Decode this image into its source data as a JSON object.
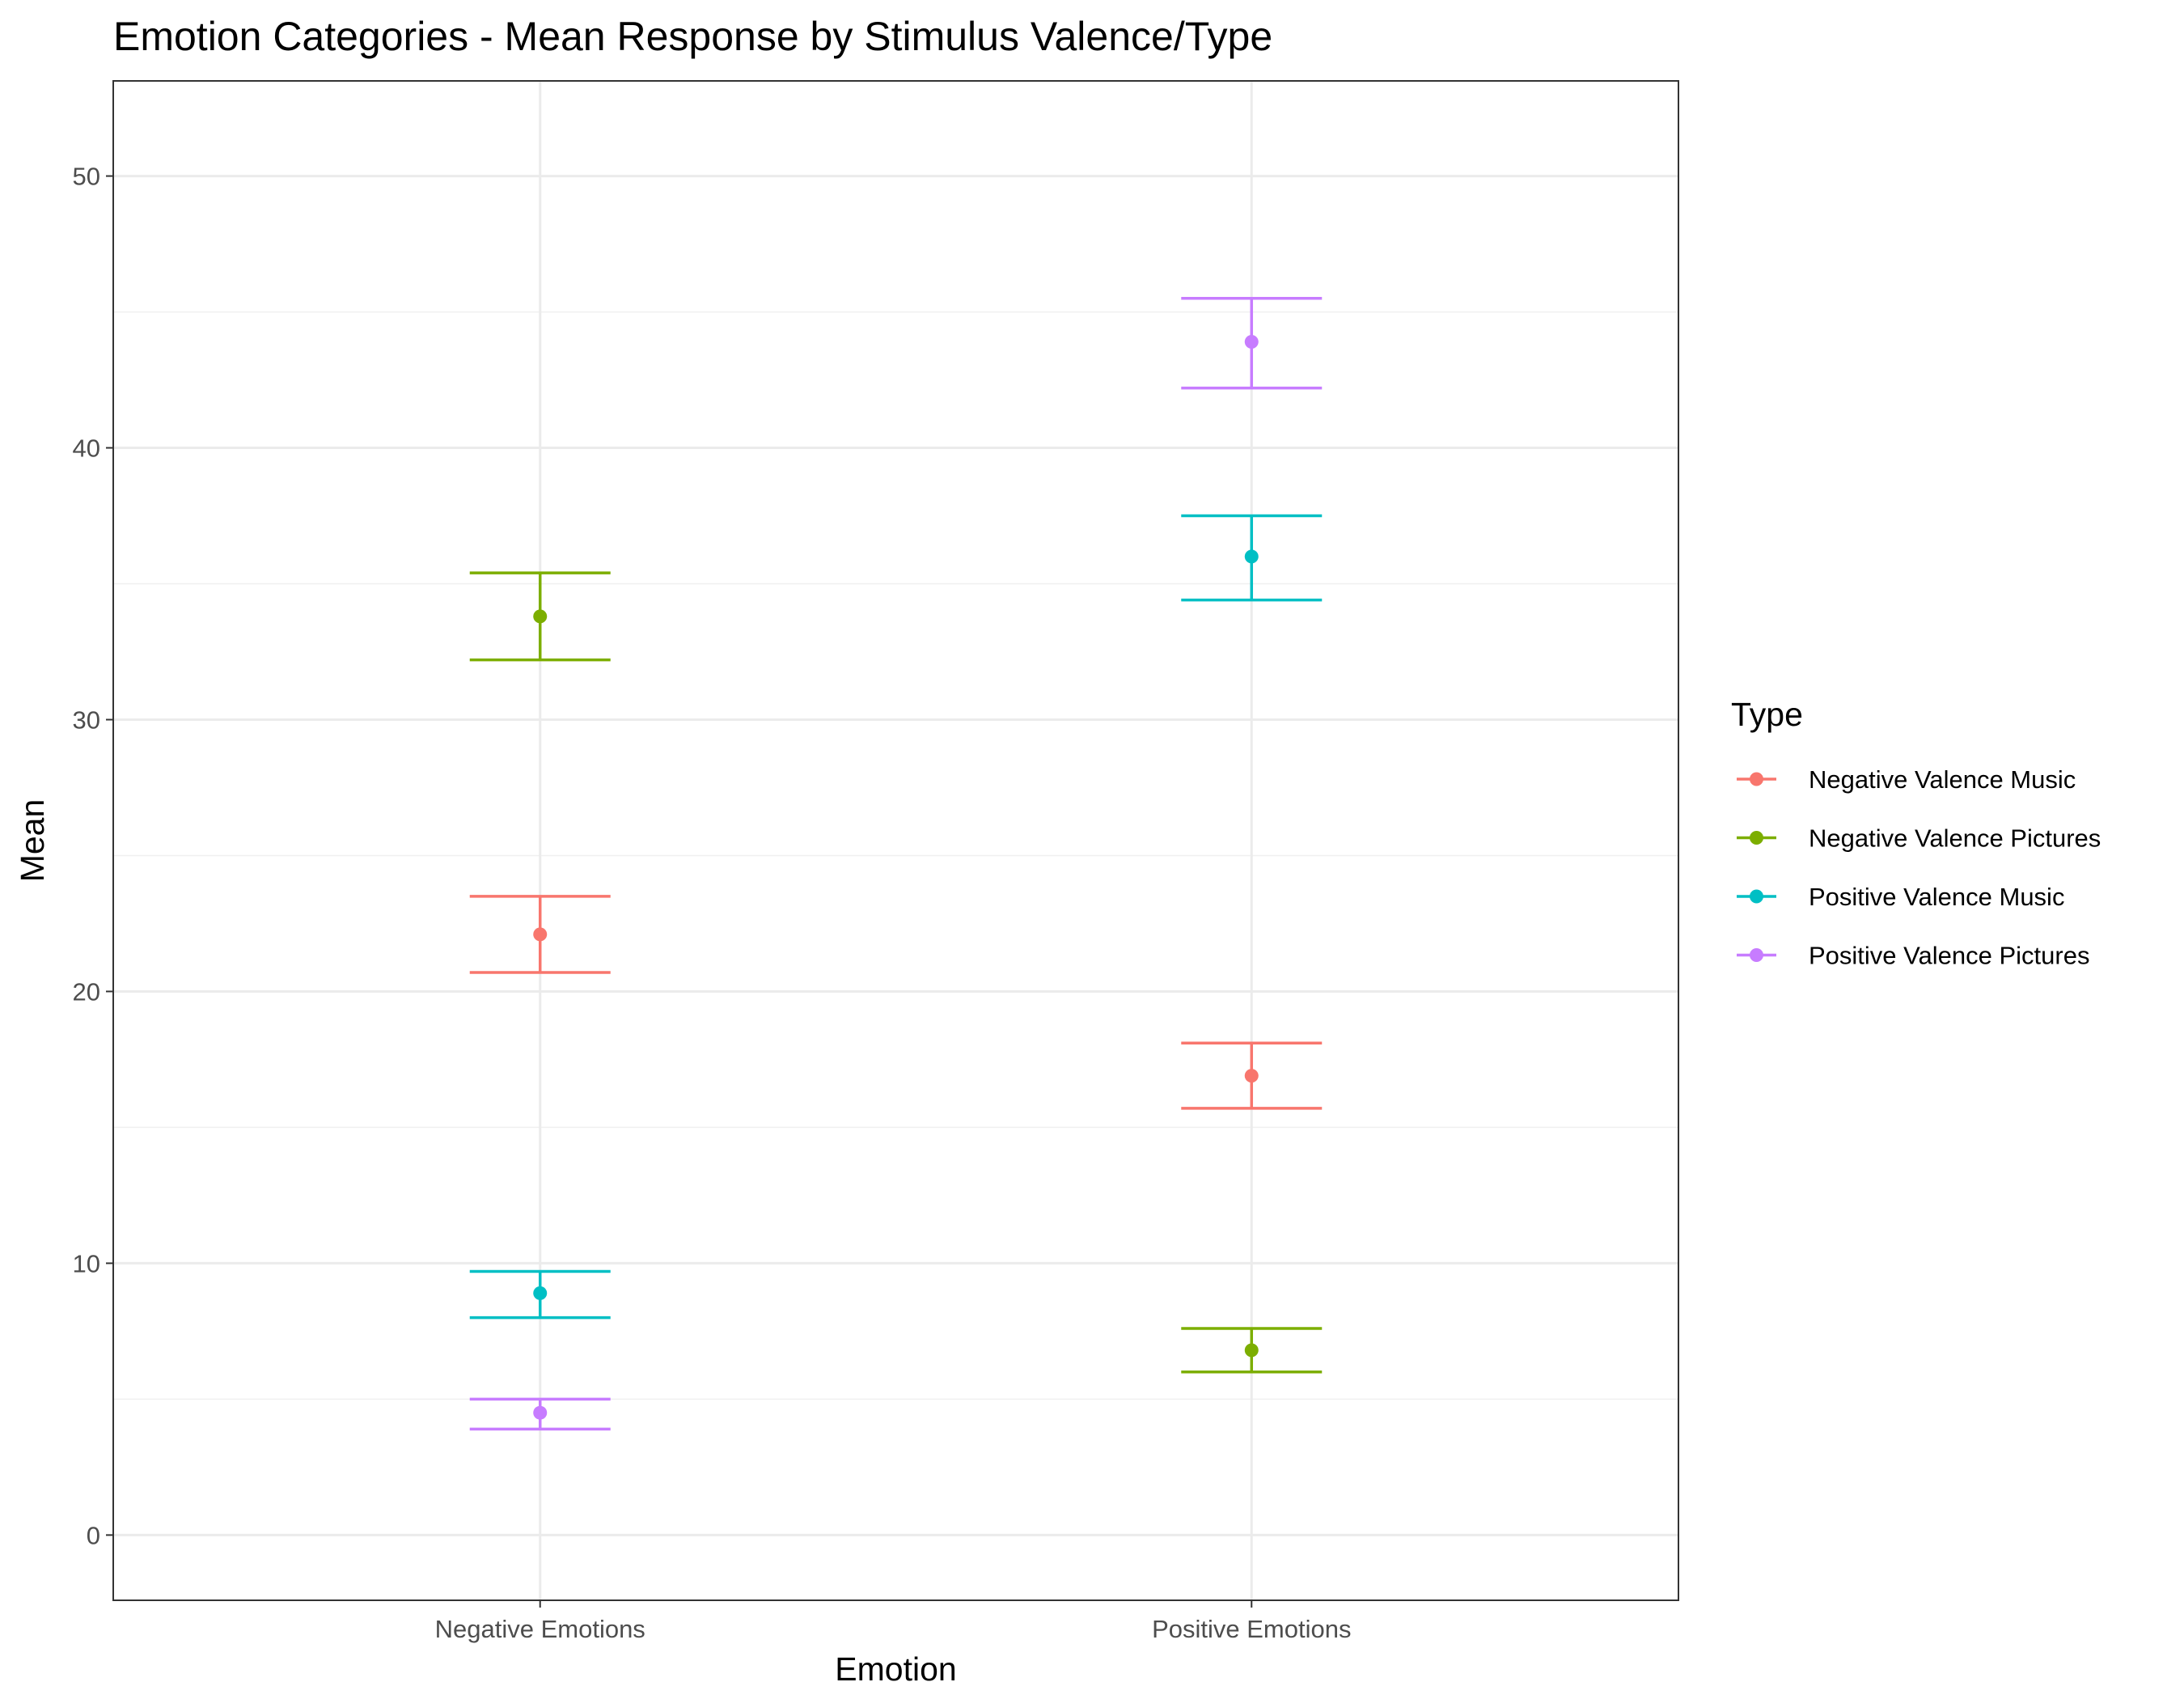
{
  "chart_data": {
    "type": "scatter",
    "title": "Emotion Categories - Mean Response by Stimulus Valence/Type",
    "xlabel": "Emotion",
    "ylabel": "Mean",
    "categories": [
      "Negative Emotions",
      "Positive Emotions"
    ],
    "ylim": [
      -2.4,
      53.5
    ],
    "yticks": [
      0,
      10,
      20,
      30,
      40,
      50
    ],
    "grid": true,
    "legend": {
      "title": "Type",
      "position": "right"
    },
    "series": [
      {
        "name": "Negative Valence Music",
        "color": "#F8766D",
        "values": [
          22.1,
          16.9
        ],
        "lower": [
          20.7,
          15.7
        ],
        "upper": [
          23.5,
          18.1
        ]
      },
      {
        "name": "Negative Valence Pictures",
        "color": "#7CAE00",
        "values": [
          33.8,
          6.8
        ],
        "lower": [
          32.2,
          6.0
        ],
        "upper": [
          35.4,
          7.6
        ]
      },
      {
        "name": "Positive Valence Music",
        "color": "#00BFC4",
        "values": [
          8.9,
          36.0
        ],
        "lower": [
          8.0,
          34.4
        ],
        "upper": [
          9.7,
          37.5
        ]
      },
      {
        "name": "Positive Valence Pictures",
        "color": "#C77CFF",
        "values": [
          4.5,
          43.9
        ],
        "lower": [
          3.9,
          42.2
        ],
        "upper": [
          5.0,
          45.5
        ]
      }
    ]
  }
}
